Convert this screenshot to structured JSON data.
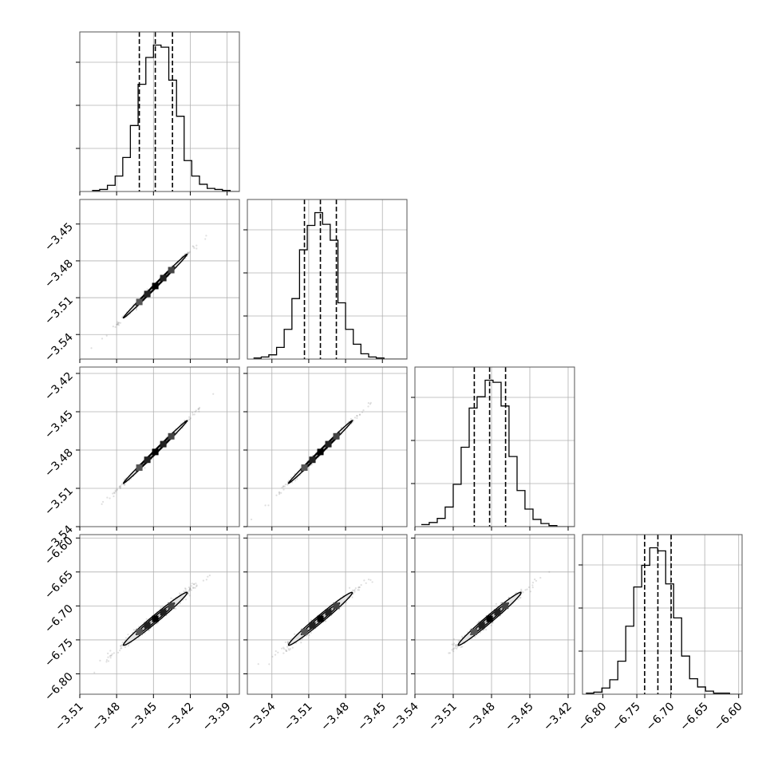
{
  "chart_data": {
    "type": "corner",
    "title": "",
    "parameters": [
      "",
      "",
      "",
      ""
    ],
    "ranges": [
      [
        -3.51,
        -3.38
      ],
      [
        -3.56,
        -3.43
      ],
      [
        -3.54,
        -3.415
      ],
      [
        -6.83,
        -6.595
      ]
    ],
    "tick_labels": [
      [
        "−3.51",
        "−3.48",
        "−3.45",
        "−3.42",
        "−3.39"
      ],
      [
        "−3.54",
        "−3.51",
        "−3.48",
        "−3.45"
      ],
      [
        "−3.54",
        "−3.51",
        "−3.48",
        "−3.45",
        "−3.42"
      ],
      [
        "−6.80",
        "−6.75",
        "−6.70",
        "−6.65",
        "−6.60"
      ]
    ],
    "tick_values": [
      [
        -3.51,
        -3.48,
        -3.45,
        -3.42,
        -3.39
      ],
      [
        -3.54,
        -3.51,
        -3.48,
        -3.45
      ],
      [
        -3.54,
        -3.51,
        -3.48,
        -3.45,
        -3.42
      ],
      [
        -6.8,
        -6.75,
        -6.7,
        -6.65,
        -6.6
      ]
    ],
    "quantiles": [
      [
        -3.4615,
        -3.4485,
        -3.4345
      ],
      [
        -3.5135,
        -3.5005,
        -3.4875
      ],
      [
        -3.4935,
        -3.4815,
        -3.469
      ],
      [
        -6.7385,
        -6.719,
        -6.6995
      ]
    ],
    "histograms": [
      {
        "bins": [
          -3.5,
          -3.4938,
          -3.4875,
          -3.4812,
          -3.475,
          -3.4688,
          -3.4625,
          -3.4562,
          -3.45,
          -3.4438,
          -3.4375,
          -3.4312,
          -3.425,
          -3.4188,
          -3.4125,
          -3.4062,
          -3.4,
          -3.3938,
          -3.3875,
          -3.3812,
          -3.375
        ],
        "counts": [
          1,
          2,
          6,
          15,
          33,
          64,
          104,
          130,
          142,
          140,
          108,
          73,
          30,
          15,
          7,
          3,
          2,
          1,
          0,
          0
        ]
      },
      {
        "bins": [
          -3.555,
          -3.5487,
          -3.5425,
          -3.5362,
          -3.53,
          -3.5237,
          -3.5175,
          -3.5112,
          -3.505,
          -3.4987,
          -3.4925,
          -3.4862,
          -3.48,
          -3.4737,
          -3.4675,
          -3.4612,
          -3.455,
          -3.4487,
          -3.4425,
          -3.4362,
          -3.43
        ],
        "counts": [
          1,
          2,
          4,
          11,
          28,
          57,
          103,
          126,
          138,
          127,
          112,
          53,
          28,
          14,
          5,
          2,
          1,
          0,
          0,
          0
        ]
      },
      {
        "bins": [
          -3.535,
          -3.5288,
          -3.5225,
          -3.5163,
          -3.51,
          -3.5038,
          -3.4975,
          -3.4913,
          -3.485,
          -3.4788,
          -3.4725,
          -3.4663,
          -3.46,
          -3.4538,
          -3.4475,
          -3.4413,
          -3.435,
          -3.4288,
          -3.4225,
          -3.4163,
          -3.41
        ],
        "counts": [
          2,
          4,
          8,
          19,
          41,
          77,
          115,
          126,
          142,
          140,
          117,
          68,
          35,
          17,
          7,
          3,
          1,
          0,
          0,
          0
        ]
      },
      {
        "bins": [
          -6.825,
          -6.8133,
          -6.8015,
          -6.7898,
          -6.778,
          -6.7663,
          -6.7545,
          -6.7428,
          -6.731,
          -6.7193,
          -6.7075,
          -6.6958,
          -6.684,
          -6.6723,
          -6.6605,
          -6.6488,
          -6.637,
          -6.6253,
          -6.6135,
          -6.6018,
          -6.59
        ],
        "counts": [
          1,
          2,
          6,
          14,
          32,
          66,
          104,
          125,
          142,
          139,
          107,
          74,
          37,
          15,
          7,
          3,
          1,
          1,
          0,
          0
        ]
      }
    ],
    "correlations": {
      "1-0": 0.997,
      "2-0": 0.997,
      "2-1": 0.997,
      "3-0": 0.985,
      "3-1": 0.985,
      "3-2": 0.985
    },
    "centers": [
      -3.4485,
      -3.5005,
      -3.4815,
      -6.719
    ],
    "sigmas": [
      0.013,
      0.013,
      0.0123,
      0.0195
    ],
    "grid": true,
    "colors": {
      "ink": "#000000",
      "grid": "#b0b0b0",
      "points": "#808080"
    }
  }
}
